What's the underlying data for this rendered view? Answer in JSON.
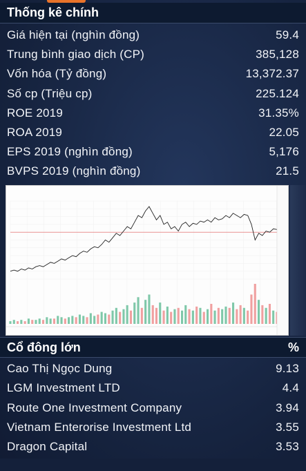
{
  "stats": {
    "title": "Thống kê chính",
    "rows": [
      {
        "label": "Giá hiện tại (nghìn đồng)",
        "value": "59.4"
      },
      {
        "label": "Trung bình giao dịch (CP)",
        "value": "385,128"
      },
      {
        "label": "Vốn hóa (Tỷ đồng)",
        "value": "13,372.37"
      },
      {
        "label": "Số cp (Triệu cp)",
        "value": "225.124"
      },
      {
        "label": "ROE 2019",
        "value": "31.35%"
      },
      {
        "label": "ROA 2019",
        "value": "22.05"
      },
      {
        "label": "EPS 2019 (nghìn đồng)",
        "value": "5,176"
      },
      {
        "label": "BVPS 2019 (nghìn đồng)",
        "value": "21.5"
      }
    ]
  },
  "chart_data": {
    "type": "line",
    "title": "",
    "xlabel": "",
    "ylabel": "",
    "price_series": [
      22,
      23,
      22,
      24,
      23,
      25,
      24,
      26,
      27,
      26,
      28,
      30,
      29,
      31,
      33,
      32,
      34,
      36,
      35,
      38,
      40,
      39,
      42,
      44,
      43,
      46,
      50,
      48,
      52,
      56,
      54,
      58,
      62,
      60,
      66,
      72,
      70,
      76,
      80,
      74,
      68,
      72,
      64,
      66,
      60,
      62,
      58,
      64,
      66,
      62,
      65,
      64,
      67,
      66,
      68,
      66,
      70,
      68,
      69,
      72,
      70,
      74,
      72,
      70,
      73,
      72,
      64,
      50,
      56,
      54,
      58,
      57,
      60,
      59.4
    ],
    "reference_line": 57,
    "volume_series": [
      2,
      3,
      2,
      3,
      2,
      4,
      3,
      3,
      4,
      3,
      5,
      4,
      4,
      6,
      5,
      4,
      5,
      6,
      5,
      7,
      6,
      5,
      8,
      6,
      7,
      9,
      8,
      7,
      10,
      12,
      9,
      11,
      14,
      10,
      16,
      20,
      12,
      18,
      22,
      14,
      12,
      16,
      10,
      13,
      9,
      11,
      12,
      10,
      14,
      11,
      10,
      13,
      12,
      9,
      11,
      15,
      10,
      12,
      11,
      13,
      12,
      16,
      11,
      14,
      12,
      10,
      22,
      30,
      18,
      14,
      12,
      15,
      10,
      9
    ],
    "grid": true,
    "legend": "none"
  }
}
